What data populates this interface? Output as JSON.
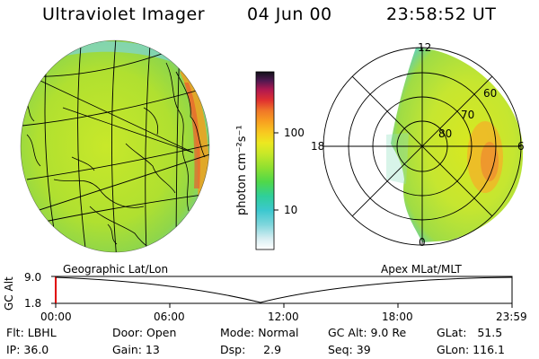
{
  "header": {
    "instrument": "Ultraviolet Imager",
    "date": "04 Jun 00",
    "time": "23:58:52 UT"
  },
  "colorbar": {
    "unit_label": "photon cm⁻²s⁻¹",
    "ticks": [
      "100",
      "10"
    ]
  },
  "left_panel": {
    "label": "Geographic Lat/Lon"
  },
  "right_panel": {
    "label": "Apex MLat/MLT",
    "mlt_labels": [
      "12",
      "18",
      "6",
      "0"
    ],
    "mlat_labels": [
      "60",
      "70",
      "80"
    ]
  },
  "altitude_strip": {
    "axis_label": "GC Alt",
    "y_max": "9.0",
    "y_min": "1.8",
    "time_ticks": [
      "00:00",
      "06:00",
      "12:00",
      "18:00",
      "23:59"
    ]
  },
  "footer": {
    "filter": "Flt: LBHL",
    "ip": "IP: 36.0",
    "door": "Door: Open",
    "gain": "Gain: 13",
    "mode": "Mode: Normal",
    "dsp": "Dsp:     2.9",
    "gc_alt": "GC Alt: 9.0 Re",
    "seq": "Seq: 39",
    "glat": "GLat:   51.5",
    "glon": "GLon: 116.1"
  }
}
